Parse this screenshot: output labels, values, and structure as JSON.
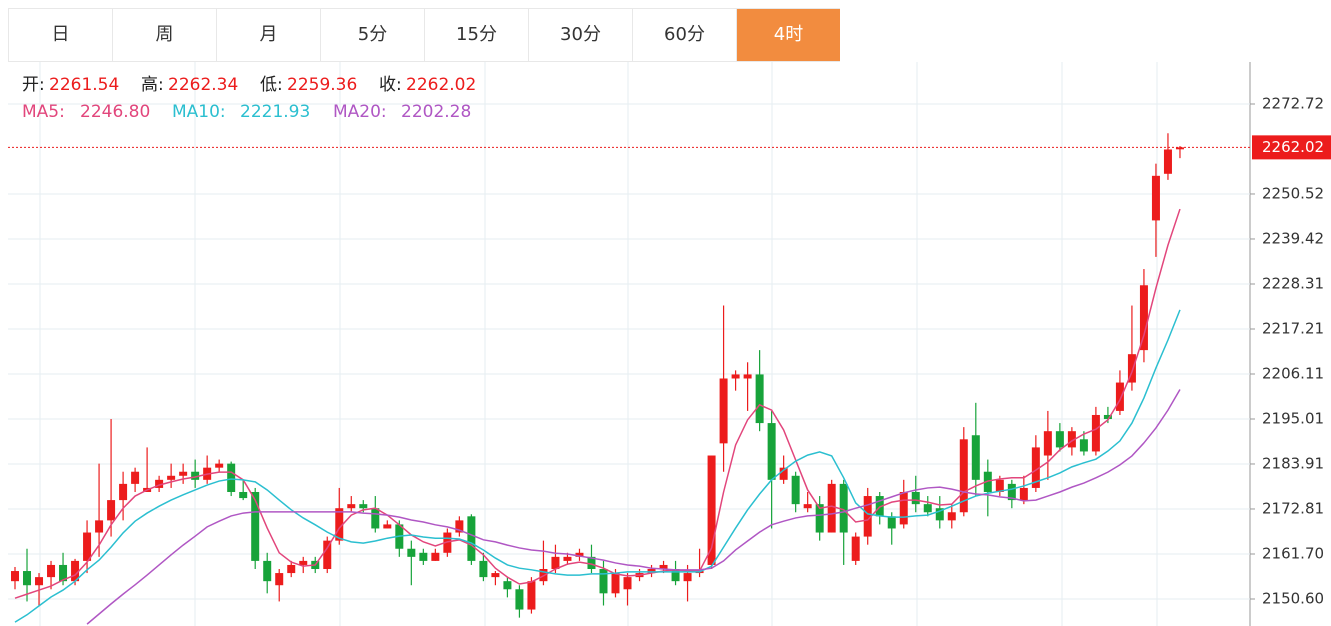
{
  "tabs": {
    "items": [
      "日",
      "周",
      "月",
      "5分",
      "15分",
      "30分",
      "60分",
      "4时"
    ],
    "active": 7
  },
  "chart_data": {
    "type": "candlestick",
    "ohlc_labels": [
      "开:",
      "高:",
      "低:",
      "收:"
    ],
    "up_color": "#ec1c1c",
    "down_color": "#17a33a",
    "ylim": [
      2143.94,
      2283.08
    ],
    "yticks": [
      {
        "value": 2150.6,
        "label": "2150.60"
      },
      {
        "value": 2161.7,
        "label": "2161.70"
      },
      2172.81,
      2183.91,
      2195.01,
      2206.11,
      2217.21,
      2228.31,
      2239.42,
      2250.52,
      2272.72
    ],
    "grid": true,
    "open": [
      2155,
      2157.5,
      2154,
      2156,
      2159,
      2155,
      2160,
      2167,
      2170,
      2175,
      2179,
      2177,
      2178,
      2180,
      2181,
      2182,
      2180,
      2183,
      2184,
      2177,
      2177,
      2160,
      2154,
      2157,
      2159,
      2160,
      2158,
      2165,
      2173,
      2174,
      2173,
      2168,
      2169,
      2163,
      2162,
      2160,
      2162,
      2167,
      2171,
      2160,
      2156,
      2155,
      2153,
      2148,
      2155,
      2158,
      2160,
      2161,
      2161,
      2158,
      2152,
      2153,
      2156,
      2157,
      2158,
      2158,
      2155,
      2157,
      2159,
      2189,
      2205,
      2205,
      2206,
      2194,
      2180,
      2181,
      2173,
      2174,
      2167,
      2179,
      2160,
      2166,
      2176,
      2171,
      2169,
      2177,
      2174,
      2173,
      2170,
      2172,
      2191,
      2182,
      2177,
      2179,
      2175,
      2178,
      2186,
      2192,
      2188,
      2190,
      2187,
      2196,
      2197,
      2204,
      2212,
      2244,
      2255.5,
      2261.54
    ],
    "high": [
      2158.5,
      2163,
      2157,
      2160,
      2162,
      2160.5,
      2170,
      2184,
      2195,
      2182,
      2183,
      2188,
      2181,
      2184,
      2184,
      2185,
      2186,
      2185,
      2184.5,
      2180,
      2178,
      2162,
      2158,
      2160,
      2161,
      2161,
      2166,
      2178,
      2176,
      2175,
      2176,
      2170,
      2170,
      2165,
      2163,
      2163,
      2168,
      2171,
      2171.5,
      2162,
      2157.5,
      2156,
      2154,
      2156,
      2165,
      2164,
      2162,
      2163,
      2164,
      2160,
      2158,
      2157,
      2158,
      2159,
      2160,
      2160,
      2159,
      2163,
      2186,
      2223,
      2207,
      2209,
      2212,
      2197,
      2186,
      2182,
      2177,
      2176,
      2180,
      2180,
      2167,
      2178,
      2177,
      2172,
      2180,
      2181,
      2176,
      2176,
      2174,
      2193,
      2199,
      2185,
      2181,
      2180,
      2181,
      2191,
      2197,
      2194,
      2193,
      2192,
      2198,
      2198,
      2207,
      2223,
      2232,
      2258,
      2265.5,
      2262.34
    ],
    "low": [
      2153,
      2150,
      2149,
      2153,
      2154,
      2154,
      2157,
      2161,
      2166,
      2170,
      2177,
      2177,
      2177,
      2178,
      2179,
      2178,
      2179,
      2182,
      2176,
      2175,
      2158,
      2152,
      2150,
      2156,
      2157,
      2157,
      2157,
      2164,
      2172,
      2172,
      2167,
      2168,
      2161,
      2154,
      2159,
      2160,
      2161,
      2166,
      2159,
      2155,
      2154,
      2151,
      2146,
      2147,
      2154,
      2157,
      2159,
      2160,
      2157,
      2149,
      2151,
      2149,
      2155,
      2156,
      2157,
      2154,
      2150,
      2156,
      2158,
      2182,
      2202,
      2197,
      2192,
      2168,
      2179,
      2172,
      2172,
      2165,
      2167,
      2159,
      2159,
      2164,
      2169,
      2164,
      2168,
      2172,
      2171,
      2168,
      2168,
      2171,
      2176,
      2171,
      2176,
      2173,
      2174,
      2177,
      2180,
      2187,
      2186,
      2186,
      2186,
      2194,
      2196,
      2202,
      2209,
      2235,
      2254,
      2259.36
    ],
    "close": [
      2157.5,
      2154,
      2156,
      2159,
      2155,
      2160,
      2167,
      2170,
      2175,
      2179,
      2182,
      2178,
      2180,
      2181,
      2182,
      2180,
      2183,
      2184,
      2177,
      2175.5,
      2160,
      2155,
      2157,
      2159,
      2160,
      2158,
      2165,
      2173,
      2174,
      2173,
      2168,
      2169,
      2163,
      2161,
      2160,
      2162,
      2167,
      2170,
      2160,
      2156,
      2157,
      2153,
      2148,
      2155,
      2158,
      2161,
      2161,
      2162,
      2158,
      2152,
      2157,
      2156,
      2157,
      2158,
      2159,
      2155,
      2157,
      2157.5,
      2186,
      2205,
      2206,
      2206,
      2194,
      2180,
      2183,
      2174,
      2174,
      2167,
      2179,
      2167,
      2166,
      2176,
      2171,
      2168,
      2177,
      2174,
      2172,
      2170,
      2172,
      2190,
      2180,
      2177,
      2180,
      2175,
      2178,
      2188,
      2192,
      2188,
      2192,
      2187,
      2196,
      2195,
      2204,
      2211,
      2228,
      2255,
      2261.5,
      2262.02
    ],
    "series": [
      {
        "name": "MA5:",
        "color": "#e2467c",
        "last_label": "2246.80",
        "values": [
          2150.8,
          2151.8,
          2152.8,
          2153.8,
          2155.3,
          2156.5,
          2159.7,
          2163.9,
          2168.9,
          2173.0,
          2176.0,
          2177.5,
          2178.7,
          2179.5,
          2180.2,
          2180.7,
          2181.4,
          2181.9,
          2181.9,
          2180.0,
          2175.0,
          2168.1,
          2162.0,
          2159.7,
          2158.7,
          2159.0,
          2163.2,
          2168.1,
          2171.3,
          2172.6,
          2173.0,
          2171.3,
          2168.9,
          2166.4,
          2164.7,
          2163.7,
          2164.7,
          2165.2,
          2163.9,
          2161.5,
          2158.2,
          2156.0,
          2154.3,
          2154.8,
          2156.3,
          2158.0,
          2159.2,
          2159.7,
          2159.2,
          2158.2,
          2156.8,
          2156.3,
          2156.5,
          2157.0,
          2157.5,
          2157.8,
          2157.5,
          2157.5,
          2163.2,
          2177.0,
          2188.6,
          2194.8,
          2198.5,
          2197.2,
          2192.3,
          2184.9,
          2177.5,
          2173.0,
          2173.5,
          2172.6,
          2169.6,
          2170.1,
          2173.3,
          2174.5,
          2175.0,
          2175.0,
          2174.5,
          2173.8,
          2174.0,
          2177.0,
          2178.5,
          2179.7,
          2180.2,
          2180.5,
          2180.5,
          2182.4,
          2184.4,
          2187.4,
          2189.6,
          2191.3,
          2192.5,
          2194.8,
          2199.7,
          2206.6,
          2215.7,
          2227.3,
          2237.9,
          2246.8
        ]
      },
      {
        "name": "MA10:",
        "color": "#2bbfd0",
        "last_label": "2221.93",
        "values": [
          2144.9,
          2146.7,
          2148.9,
          2151.1,
          2152.8,
          2155.0,
          2157.8,
          2160.2,
          2163.4,
          2166.9,
          2169.8,
          2171.8,
          2173.5,
          2175.0,
          2176.3,
          2177.5,
          2178.7,
          2179.7,
          2180.2,
          2180.0,
          2179.5,
          2177.5,
          2175.0,
          2172.6,
          2170.6,
          2168.9,
          2167.1,
          2165.6,
          2164.7,
          2164.4,
          2164.9,
          2165.6,
          2166.1,
          2166.4,
          2165.9,
          2165.6,
          2165.6,
          2165.4,
          2164.4,
          2162.7,
          2160.7,
          2159.0,
          2158.2,
          2157.8,
          2157.3,
          2156.8,
          2156.5,
          2156.5,
          2156.8,
          2156.8,
          2157.0,
          2157.3,
          2157.3,
          2157.3,
          2157.3,
          2157.3,
          2157.3,
          2157.3,
          2158.7,
          2163.4,
          2168.1,
          2172.6,
          2176.5,
          2180.0,
          2182.4,
          2184.6,
          2186.1,
          2186.9,
          2185.9,
          2180.5,
          2174.3,
          2171.6,
          2171.1,
          2170.8,
          2170.8,
          2171.1,
          2171.3,
          2172.3,
          2173.5,
          2174.8,
          2176.0,
          2176.7,
          2177.2,
          2177.7,
          2178.5,
          2179.5,
          2180.5,
          2181.7,
          2183.2,
          2184.2,
          2185.1,
          2187.1,
          2189.6,
          2194.0,
          2200.2,
          2207.6,
          2214.5,
          2221.93
        ]
      },
      {
        "name": "MA20:",
        "color": "#b057c4",
        "last_label": "2202.28",
        "values": [
          null,
          null,
          null,
          null,
          null,
          null,
          2144.4,
          2146.9,
          2149.4,
          2151.8,
          2154.1,
          2156.5,
          2159.0,
          2161.5,
          2163.9,
          2166.1,
          2168.4,
          2169.8,
          2171.1,
          2171.8,
          2172.1,
          2172.1,
          2172.1,
          2172.1,
          2172.1,
          2172.1,
          2172.1,
          2172.1,
          2172.1,
          2171.8,
          2171.6,
          2171.3,
          2170.8,
          2170.1,
          2169.6,
          2168.9,
          2168.4,
          2167.6,
          2166.4,
          2165.2,
          2164.7,
          2163.9,
          2163.2,
          2162.7,
          2162.4,
          2161.9,
          2161.7,
          2161.2,
          2160.7,
          2160.2,
          2159.5,
          2159.0,
          2158.7,
          2158.2,
          2158.0,
          2157.8,
          2157.8,
          2157.8,
          2158.2,
          2160.0,
          2162.7,
          2164.9,
          2167.1,
          2168.9,
          2169.8,
          2170.6,
          2171.1,
          2171.3,
          2171.6,
          2172.1,
          2173.0,
          2173.8,
          2174.8,
          2175.8,
          2176.8,
          2177.5,
          2178.0,
          2178.2,
          2177.7,
          2177.0,
          2176.5,
          2176.3,
          2175.8,
          2175.5,
          2174.8,
          2175.0,
          2176.0,
          2177.0,
          2178.2,
          2179.2,
          2180.5,
          2181.9,
          2183.7,
          2185.9,
          2189.1,
          2192.8,
          2197.2,
          2202.28
        ]
      }
    ]
  }
}
